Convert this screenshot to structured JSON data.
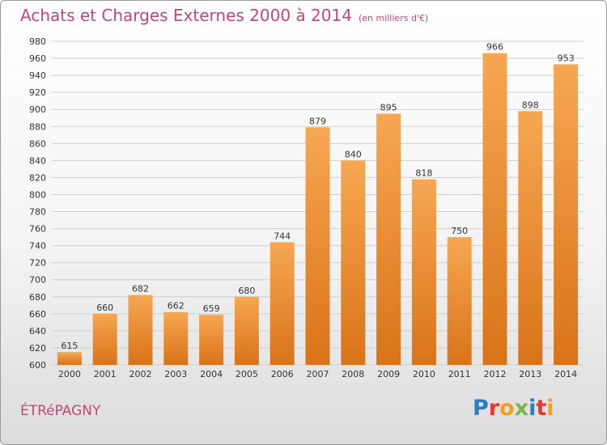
{
  "header": {
    "title": "Achats et Charges Externes 2000 à 2014",
    "subtitle": "(en milliers d'€)"
  },
  "footer": {
    "town": "ÉTRéPAGNY",
    "logo": {
      "letters": [
        {
          "ch": "P",
          "color": "#2a7ec8"
        },
        {
          "ch": "r",
          "color": "#e8372c"
        },
        {
          "ch": "o",
          "color": "#f2a020"
        },
        {
          "ch": "x",
          "color": "#7ab648"
        },
        {
          "ch": "i",
          "color": "#2a7ec8"
        },
        {
          "ch": "t",
          "color": "#e8372c"
        },
        {
          "ch": "i",
          "color": "#f2a020"
        }
      ]
    }
  },
  "chart_data": {
    "type": "bar",
    "categories": [
      "2000",
      "2001",
      "2002",
      "2003",
      "2004",
      "2005",
      "2006",
      "2007",
      "2008",
      "2009",
      "2010",
      "2011",
      "2012",
      "2013",
      "2014"
    ],
    "values": [
      615,
      660,
      682,
      662,
      659,
      680,
      744,
      879,
      840,
      895,
      818,
      750,
      966,
      898,
      953
    ],
    "ylim": [
      600,
      980
    ],
    "yticks": [
      600,
      620,
      640,
      660,
      680,
      700,
      720,
      740,
      760,
      780,
      800,
      820,
      840,
      860,
      880,
      900,
      920,
      940,
      960,
      980
    ],
    "grid": true,
    "bar_color_top": "#f7a752",
    "bar_color_bottom": "#d97318"
  }
}
